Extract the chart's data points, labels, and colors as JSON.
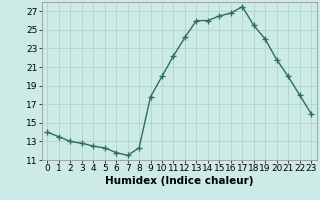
{
  "x": [
    0,
    1,
    2,
    3,
    4,
    5,
    6,
    7,
    8,
    9,
    10,
    11,
    12,
    13,
    14,
    15,
    16,
    17,
    18,
    19,
    20,
    21,
    22,
    23
  ],
  "y": [
    14.0,
    13.5,
    13.0,
    12.8,
    12.5,
    12.3,
    11.8,
    11.5,
    12.3,
    17.8,
    20.0,
    22.2,
    24.2,
    26.0,
    26.0,
    26.5,
    26.8,
    27.5,
    25.5,
    24.0,
    21.8,
    20.0,
    18.0,
    16.0
  ],
  "line_color": "#2e6e5e",
  "marker": "+",
  "bg_color": "#cceae6",
  "grid_color": "#afd4d0",
  "xlabel": "Humidex (Indice chaleur)",
  "xlim": [
    -0.5,
    23.5
  ],
  "ylim": [
    11,
    28
  ],
  "yticks": [
    11,
    13,
    15,
    17,
    19,
    21,
    23,
    25,
    27
  ],
  "xticks": [
    0,
    1,
    2,
    3,
    4,
    5,
    6,
    7,
    8,
    9,
    10,
    11,
    12,
    13,
    14,
    15,
    16,
    17,
    18,
    19,
    20,
    21,
    22,
    23
  ],
  "tick_fontsize": 6.5,
  "xlabel_fontsize": 7.5,
  "line_width": 1.0,
  "marker_size": 4,
  "marker_edge_width": 1.0
}
